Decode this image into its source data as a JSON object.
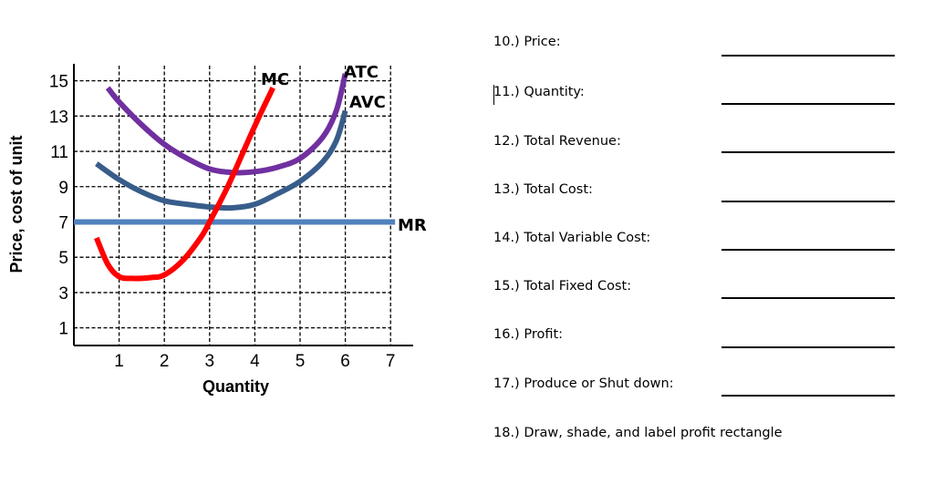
{
  "chart_data": {
    "type": "line",
    "title": "",
    "xlabel": "Quantity",
    "ylabel": "Price, cost of unit",
    "xlim": [
      0,
      7.5
    ],
    "ylim": [
      0,
      16
    ],
    "x_ticks": [
      1,
      2,
      3,
      4,
      5,
      6,
      7
    ],
    "y_ticks": [
      1,
      3,
      5,
      7,
      9,
      11,
      13,
      15
    ],
    "grid": true,
    "grid_style": "dashed",
    "legend": "inline labels at curve ends",
    "series": [
      {
        "name": "MC",
        "color": "#FF0000",
        "x": [
          0.5,
          0.75,
          1.0,
          1.3,
          1.7,
          2.0,
          2.4,
          2.8,
          3.0,
          3.4,
          3.8,
          4.1,
          4.4
        ],
        "y": [
          6.1,
          4.6,
          3.9,
          3.8,
          3.85,
          4.0,
          4.8,
          6.1,
          7.0,
          9.0,
          11.3,
          13.0,
          14.6
        ]
      },
      {
        "name": "AVC",
        "color": "#385D8A",
        "x": [
          0.5,
          1.0,
          1.5,
          2.0,
          2.5,
          3.0,
          3.5,
          4.0,
          4.5,
          5.0,
          5.5,
          5.8,
          6.0
        ],
        "y": [
          10.3,
          9.4,
          8.7,
          8.2,
          8.0,
          7.85,
          7.8,
          8.0,
          8.6,
          9.3,
          10.4,
          11.6,
          13.3
        ]
      },
      {
        "name": "ATC",
        "color": "#7030A0",
        "x": [
          0.75,
          1.0,
          1.5,
          2.0,
          2.5,
          3.0,
          3.5,
          4.0,
          4.5,
          5.0,
          5.5,
          5.8,
          6.0
        ],
        "y": [
          14.6,
          13.8,
          12.5,
          11.4,
          10.6,
          10.0,
          9.8,
          9.85,
          10.1,
          10.6,
          11.8,
          13.3,
          15.4
        ]
      },
      {
        "name": "MR",
        "color": "#4F81BD",
        "x": [
          0,
          7.1
        ],
        "y": [
          7,
          7
        ]
      }
    ]
  },
  "questions": [
    {
      "label": "10.) Price:",
      "has_blank": true
    },
    {
      "label": "11.) Quantity:",
      "has_blank": true
    },
    {
      "label": "12.) Total Revenue:",
      "has_blank": true
    },
    {
      "label": "13.) Total Cost:",
      "has_blank": true
    },
    {
      "label": "14.) Total Variable Cost:",
      "has_blank": true
    },
    {
      "label": "15.) Total Fixed Cost:",
      "has_blank": true
    },
    {
      "label": "16.) Profit:",
      "has_blank": true
    },
    {
      "label": "17.) Produce or Shut down:",
      "has_blank": true
    },
    {
      "label": "18.) Draw, shade, and label profit rectangle",
      "has_blank": false
    }
  ]
}
